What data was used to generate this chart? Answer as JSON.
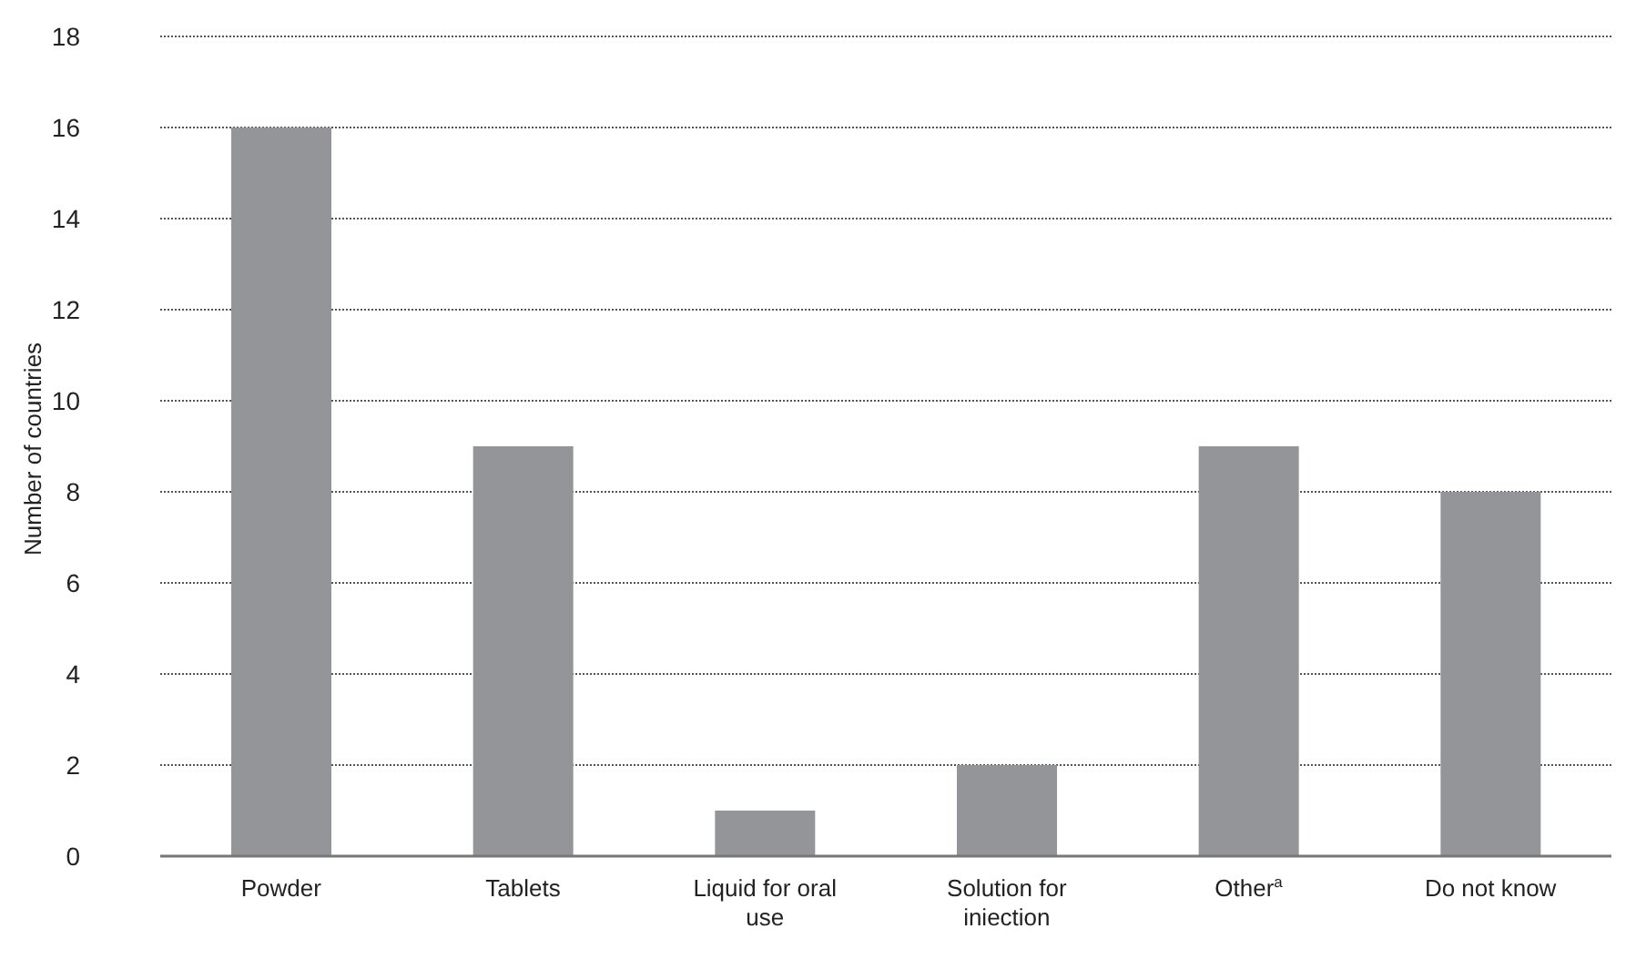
{
  "chart_data": {
    "type": "bar",
    "ylabel": "Number of countries",
    "categories": [
      "Powder",
      "Tablets",
      "Liquid for oral use",
      "Solution for iniection",
      "Other$^{a}$",
      "Do not know"
    ],
    "values": [
      16,
      9,
      1,
      2,
      9,
      8
    ],
    "color": "#939598",
    "ylim": [
      0,
      18
    ],
    "yticks": [
      0,
      2,
      4,
      6,
      8,
      10,
      12,
      14,
      16,
      18
    ],
    "grid": "y"
  }
}
